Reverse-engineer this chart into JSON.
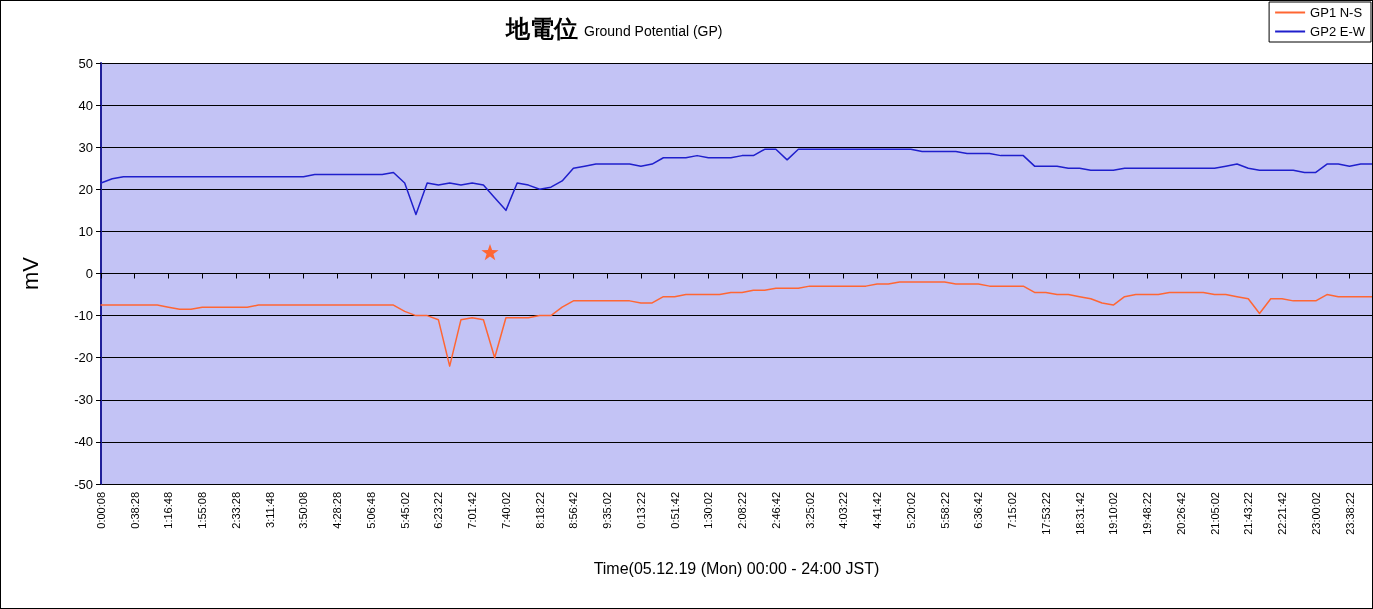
{
  "chart_data": {
    "type": "line",
    "title": "地電位",
    "subtitle": "Ground Potential (GP)",
    "xlabel": "Time(05.12.19 (Mon) 00:00 - 24:00 JST)",
    "ylabel": "mV",
    "ylim": [
      -50,
      50
    ],
    "yticks": [
      -50,
      -40,
      -30,
      -20,
      -10,
      0,
      10,
      20,
      30,
      40,
      50
    ],
    "categories": [
      "0:00:08",
      null,
      null,
      "0:38:28",
      null,
      null,
      "1:16:48",
      null,
      null,
      "1:55:08",
      null,
      null,
      "2:33:28",
      null,
      null,
      "3:11:48",
      null,
      null,
      "3:50:08",
      null,
      null,
      "4:28:28",
      null,
      null,
      "5:06:48",
      null,
      null,
      "5:45:02",
      null,
      null,
      "6:23:22",
      null,
      null,
      "7:01:42",
      null,
      null,
      "7:40:02",
      null,
      null,
      "8:18:22",
      null,
      null,
      "8:56:42",
      null,
      null,
      "9:35:02",
      null,
      null,
      "0:13:22",
      null,
      null,
      "0:51:42",
      null,
      null,
      "1:30:02",
      null,
      null,
      "2:08:22",
      null,
      null,
      "2:46:42",
      null,
      null,
      "3:25:02",
      null,
      null,
      "4:03:22",
      null,
      null,
      "4:41:42",
      null,
      null,
      "5:20:02",
      null,
      null,
      "5:58:22",
      null,
      null,
      "6:36:42",
      null,
      null,
      "7:15:02",
      null,
      null,
      "17:53:22",
      null,
      null,
      "18:31:42",
      null,
      null,
      "19:10:02",
      null,
      null,
      "19:48:22",
      null,
      null,
      "20:26:42",
      null,
      null,
      "21:05:02",
      null,
      null,
      "21:43:22",
      null,
      null,
      "22:21:42",
      null,
      null,
      "23:00:02",
      null,
      null,
      "23:38:22",
      null,
      null
    ],
    "grid": "y",
    "legend": "top right",
    "marker": "none",
    "line_style": "solid",
    "series": [
      {
        "name": "GP1 N-S",
        "color": "#ff6633",
        "values": [
          -7.5,
          -7.5,
          -7.5,
          -7.5,
          -7.5,
          -7.5,
          -8,
          -8.5,
          -8.5,
          -8,
          -8,
          -8,
          -8,
          -8,
          -7.5,
          -7.5,
          -7.5,
          -7.5,
          -7.5,
          -7.5,
          -7.5,
          -7.5,
          -7.5,
          -7.5,
          -7.5,
          -7.5,
          -7.5,
          -9,
          -10,
          -10,
          -11,
          -22,
          -11,
          -10.5,
          -11,
          -20,
          -10.5,
          -10.5,
          -10.5,
          -10,
          -10,
          -8,
          -6.5,
          -6.5,
          -6.5,
          -6.5,
          -6.5,
          -6.5,
          -7,
          -7,
          -5.5,
          -5.5,
          -5,
          -5,
          -5,
          -5,
          -4.5,
          -4.5,
          -4,
          -4,
          -3.5,
          -3.5,
          -3.5,
          -3,
          -3,
          -3,
          -3,
          -3,
          -3,
          -2.5,
          -2.5,
          -2,
          -2,
          -2,
          -2,
          -2,
          -2.5,
          -2.5,
          -2.5,
          -3,
          -3,
          -3,
          -3,
          -4.5,
          -4.5,
          -5,
          -5,
          -5.5,
          -6,
          -7,
          -7.5,
          -5.5,
          -5,
          -5,
          -5,
          -4.5,
          -4.5,
          -4.5,
          -4.5,
          -5,
          -5,
          -5.5,
          -6,
          -9.5,
          -6,
          -6,
          -6.5,
          -6.5,
          -6.5,
          -5,
          -5.5,
          -5.5,
          -5.5,
          -5.5
        ]
      },
      {
        "name": "GP2 E-W",
        "color": "#1f1fcc",
        "values": [
          21.5,
          22.5,
          23,
          23,
          23,
          23,
          23,
          23,
          23,
          23,
          23,
          23,
          23,
          23,
          23,
          23,
          23,
          23,
          23,
          23.5,
          23.5,
          23.5,
          23.5,
          23.5,
          23.5,
          23.5,
          24,
          21.5,
          14,
          21.5,
          21,
          21.5,
          21,
          21.5,
          21,
          18,
          15,
          21.5,
          21,
          20,
          20.5,
          22,
          25,
          25.5,
          26,
          26,
          26,
          26,
          25.5,
          26,
          27.5,
          27.5,
          27.5,
          28,
          27.5,
          27.5,
          27.5,
          28,
          28,
          29.5,
          29.5,
          27,
          29.5,
          29.5,
          29.5,
          29.5,
          29.5,
          29.5,
          29.5,
          29.5,
          29.5,
          29.5,
          29.5,
          29,
          29,
          29,
          29,
          28.5,
          28.5,
          28.5,
          28,
          28,
          28,
          25.5,
          25.5,
          25.5,
          25,
          25,
          24.5,
          24.5,
          24.5,
          25,
          25,
          25,
          25,
          25,
          25,
          25,
          25,
          25,
          25.5,
          26,
          25,
          24.5,
          24.5,
          24.5,
          24.5,
          24,
          24,
          26,
          26,
          25.5,
          26,
          26
        ]
      }
    ]
  }
}
